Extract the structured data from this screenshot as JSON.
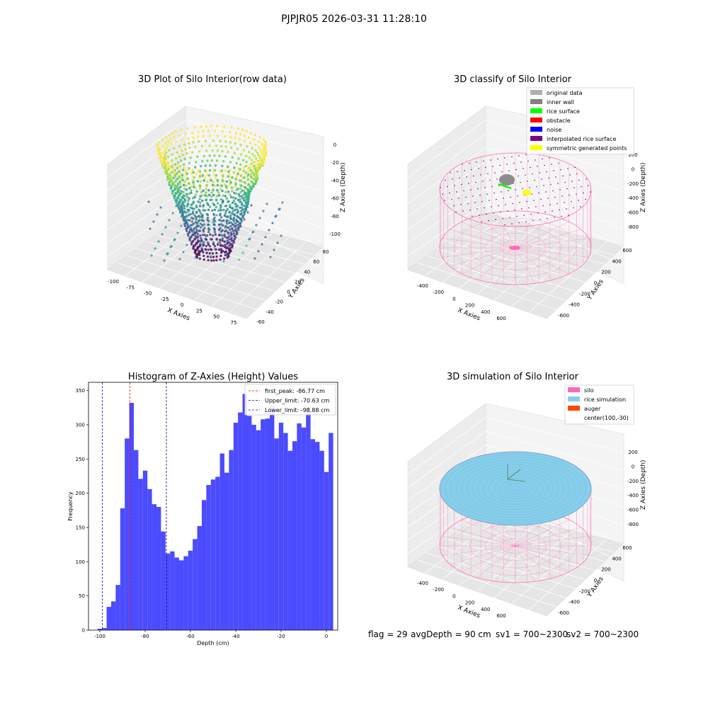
{
  "figure": {
    "suptitle": "PJPJR05 2026-03-31 11:28:10"
  },
  "chart_data": [
    {
      "type": "scatter",
      "title": "3D Plot of Silo Interior(row data)",
      "xlabel": "X Axies",
      "ylabel": "Y Axies",
      "zlabel": "Z Axies (Depth)",
      "xlim": [
        -105,
        80
      ],
      "ylim": [
        -60,
        85
      ],
      "zlim": [
        -105,
        5
      ],
      "x_ticks": [
        "-100",
        "-75",
        "-50",
        "-25",
        "0",
        "25",
        "50",
        "75"
      ],
      "y_ticks": [
        "-60",
        "-40",
        "-20",
        "0",
        "20",
        "40",
        "60",
        "80"
      ],
      "z_ticks": [
        "0",
        "-20",
        "-40",
        "-60",
        "-80",
        "-100"
      ],
      "colormap": "viridis",
      "grid": true
    },
    {
      "type": "scatter",
      "title": "3D classify of Silo Interior",
      "xlabel": "X Axies",
      "ylabel": "Y Axies",
      "zlabel": "Z Axies (Depth)",
      "x_ticks": [
        "-400",
        "-200",
        "0",
        "200",
        "400",
        "600"
      ],
      "y_ticks": [
        "-600",
        "-400",
        "-200",
        "0",
        "200",
        "400",
        "600"
      ],
      "z_ticks": [
        "200",
        "0",
        "-200",
        "-400",
        "-600",
        "-800"
      ],
      "legend_position": "top-right",
      "legend": [
        {
          "label": "original data",
          "color": "#b0b0b0"
        },
        {
          "label": "inner wall",
          "color": "#808080"
        },
        {
          "label": "rice surface",
          "color": "#00ff00"
        },
        {
          "label": "obstacle",
          "color": "#ff0000"
        },
        {
          "label": "noise",
          "color": "#0000ff"
        },
        {
          "label": "interpolated rice surface",
          "color": "#800080"
        },
        {
          "label": "symmetric generated points",
          "color": "#ffff00"
        }
      ],
      "wire_color": "#ff69b4",
      "grid": true
    },
    {
      "type": "bar",
      "title": "Histogram of Z-Axies (Height) Values",
      "xlabel": "Depth (cm)",
      "ylabel": "Frequency",
      "xlim": [
        -105,
        5
      ],
      "ylim": [
        0,
        362
      ],
      "x_ticks": [
        -100,
        -80,
        -60,
        -40,
        -20,
        0
      ],
      "y_ticks": [
        0,
        50,
        100,
        150,
        200,
        250,
        300,
        350
      ],
      "bin_start": -101,
      "bin_width": 2,
      "values": [
        2,
        3,
        34,
        42,
        66,
        178,
        280,
        332,
        263,
        221,
        233,
        206,
        184,
        180,
        144,
        112,
        115,
        106,
        102,
        108,
        116,
        133,
        152,
        190,
        212,
        220,
        224,
        258,
        230,
        263,
        303,
        318,
        345,
        313,
        300,
        292,
        308,
        309,
        328,
        280,
        303,
        288,
        262,
        276,
        302,
        296,
        325,
        279,
        275,
        262,
        231,
        288
      ],
      "bar_color": "#4b4bff",
      "vlines": [
        {
          "label": "first_peak: -86.77 cm",
          "x": -86.77,
          "color": "#ff0000"
        },
        {
          "label": "Upper_limit: -70.63 cm",
          "x": -70.63,
          "color": "#00008b"
        },
        {
          "label": "Lower_limit: -98.88 cm",
          "x": -98.88,
          "color": "#0000ff"
        }
      ],
      "legend_position": "top-right"
    },
    {
      "type": "scatter",
      "title": "3D simulation of Silo Interior",
      "xlabel": "X Axies",
      "ylabel": "Y Axies",
      "zlabel": "Z Axies (Depth)",
      "x_ticks": [
        "-400",
        "-200",
        "0",
        "200",
        "400",
        "600"
      ],
      "y_ticks": [
        "-600",
        "-400",
        "-200",
        "0",
        "200",
        "400",
        "600"
      ],
      "z_ticks": [
        "200",
        "0",
        "-200",
        "-400",
        "-600",
        "-800"
      ],
      "legend_position": "top-right",
      "legend": [
        {
          "label": "silo",
          "color": "#ff69b4"
        },
        {
          "label": "rice simulation",
          "color": "#87ceeb"
        },
        {
          "label": "auger",
          "color": "#ff4500"
        },
        {
          "label": "center(100,-30)",
          "color": ""
        }
      ],
      "grid": true
    }
  ],
  "status": {
    "flag": "flag = 29",
    "avg_depth": "avgDepth = 90 cm",
    "sv1": "sv1 = 700~2300",
    "sv2": "sv2 = 700~2300"
  }
}
